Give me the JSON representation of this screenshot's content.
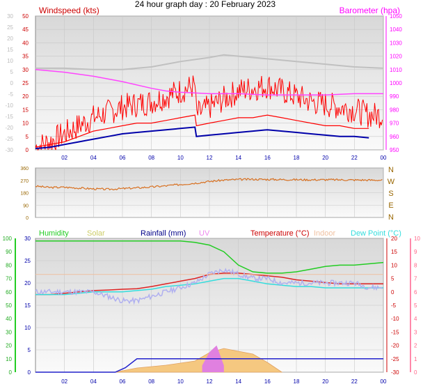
{
  "title": "24 hour graph day : 20 February 2023",
  "x_labels": [
    "02",
    "04",
    "06",
    "08",
    "10",
    "12",
    "14",
    "16",
    "18",
    "20",
    "22",
    "00"
  ],
  "colors": {
    "wind": "#ff0000",
    "gust": "#ff0000",
    "avgwind": "#0000aa",
    "baro": "#ff44ff",
    "grey_trace": "#c0c0c0",
    "dir": "#d87020",
    "dir_label": "#996600",
    "humidity": "#22cc22",
    "solar": "#cccc66",
    "rain": "#2222cc",
    "uv": "#ee88ee",
    "temperature": "#dd2222",
    "indoor": "#f0c0a0",
    "dewpoint": "#33dddd",
    "lavender": "#b0b0f0",
    "solar_fill": "#f5c880",
    "uv_fill": "#e080e0"
  },
  "chart_data": [
    {
      "type": "line",
      "panel": "wind",
      "title": "",
      "left_axis_label": "Windspeed (kts)",
      "right_axis_label": "Barometer (hpa)",
      "left_ticks": [
        "50",
        "45",
        "40",
        "35",
        "30",
        "25",
        "20",
        "15",
        "10",
        "5",
        "0"
      ],
      "left_ylim": [
        0,
        50
      ],
      "faint_ticks": [
        "30",
        "25",
        "20",
        "15",
        "10",
        "5",
        "0",
        "-5",
        "-10",
        "-15",
        "-20",
        "-25",
        "-30"
      ],
      "faint_ylim": [
        -30,
        30
      ],
      "right_ticks": [
        "1050",
        "1040",
        "1030",
        "1020",
        "1010",
        "1000",
        "990",
        "980",
        "970",
        "960",
        "950"
      ],
      "right_ylim": [
        950,
        1050
      ],
      "grid": true,
      "series": [
        {
          "key": "gust",
          "x": [
            0,
            1,
            2,
            3,
            4,
            5,
            6,
            7,
            8,
            9,
            10,
            11,
            11.1,
            12,
            13,
            14,
            15,
            16,
            17,
            18,
            19,
            20,
            21,
            22,
            23
          ],
          "y": [
            1,
            3,
            6,
            9,
            12,
            14,
            16,
            17,
            18,
            20,
            22,
            24,
            13,
            16,
            19,
            22,
            23,
            24,
            22,
            20,
            18,
            17,
            16,
            15,
            13
          ]
        },
        {
          "key": "wind",
          "x": [
            0,
            1,
            2,
            3,
            4,
            5,
            6,
            7,
            8,
            9,
            10,
            11,
            11.1,
            12,
            13,
            14,
            15,
            16,
            17,
            18,
            19,
            20,
            21,
            22,
            23
          ],
          "y": [
            1,
            2,
            3,
            5,
            7,
            8,
            9,
            10,
            10,
            11,
            12,
            13,
            9,
            10,
            11,
            12,
            12,
            13,
            12,
            11,
            10,
            9,
            9,
            8,
            8
          ]
        },
        {
          "key": "avgwind",
          "x": [
            0,
            1,
            2,
            3,
            4,
            5,
            6,
            7,
            8,
            9,
            10,
            11,
            11.1,
            12,
            13,
            14,
            15,
            16,
            17,
            18,
            19,
            20,
            21,
            22,
            23
          ],
          "y": [
            0.5,
            1,
            2,
            3,
            4,
            5,
            6,
            6.5,
            7,
            7.5,
            8,
            8.5,
            5,
            5.5,
            6,
            6.5,
            7,
            7.5,
            7,
            6.5,
            6,
            5.5,
            5,
            5,
            4.5
          ]
        },
        {
          "key": "grey_trace",
          "x": [
            0,
            2,
            4,
            6,
            8,
            10,
            12,
            13,
            14,
            16,
            18,
            20,
            22,
            24
          ],
          "y": [
            1011,
            1011,
            1010,
            1010,
            1012,
            1016,
            1019,
            1021,
            1020,
            1018,
            1016,
            1014,
            1012,
            1011
          ]
        },
        {
          "key": "baro",
          "x": [
            0,
            2,
            4,
            6,
            8,
            9,
            10,
            12,
            14,
            16,
            18,
            20,
            22,
            24
          ],
          "y": [
            1010,
            1008,
            1005,
            1001,
            996,
            994,
            993,
            992,
            992,
            991,
            991,
            991,
            992,
            992
          ]
        }
      ]
    },
    {
      "type": "line",
      "panel": "direction",
      "left_ticks": [
        "360",
        "270",
        "180",
        "90",
        "0"
      ],
      "ylim": [
        0,
        360
      ],
      "right_labels": [
        "N",
        "W",
        "S",
        "E",
        "N"
      ],
      "series": [
        {
          "key": "dir",
          "x": [
            0,
            1,
            2,
            3,
            4,
            5,
            6,
            7,
            8,
            9,
            10,
            11,
            12,
            13,
            14,
            15,
            16,
            17,
            18,
            19,
            20,
            21,
            22,
            23,
            24
          ],
          "y": [
            228,
            218,
            220,
            214,
            208,
            205,
            210,
            215,
            222,
            230,
            240,
            250,
            262,
            272,
            276,
            278,
            277,
            276,
            275,
            274,
            275,
            274,
            273,
            272,
            272
          ]
        }
      ]
    },
    {
      "type": "line",
      "panel": "climate",
      "legend": [
        "Humidity",
        "Solar",
        "Rainfall (mm)",
        "UV",
        "Temperature (°C)",
        "Indoor",
        "Dew Point (°C)"
      ],
      "humidity_ticks": [
        "100",
        "90",
        "80",
        "70",
        "60",
        "50",
        "40",
        "30",
        "20",
        "10",
        "0"
      ],
      "humidity_ylim": [
        0,
        100
      ],
      "rain_ticks": [
        "30",
        "25",
        "20",
        "15",
        "10",
        "5",
        "0"
      ],
      "rain_ylim": [
        0,
        30
      ],
      "temp_ticks": [
        "20",
        "15",
        "10",
        "5",
        "0",
        "-5",
        "-10",
        "-15",
        "-20",
        "-25",
        "-30"
      ],
      "temp_ylim": [
        -30,
        20
      ],
      "uv_ticks": [
        "10",
        "9",
        "8",
        "7",
        "6",
        "5",
        "4",
        "3",
        "2",
        "1",
        "0"
      ],
      "uv_ylim": [
        0,
        10
      ],
      "series": [
        {
          "key": "humidity",
          "x": [
            0,
            1,
            2,
            3,
            4,
            5,
            6,
            7,
            8,
            9,
            10,
            11,
            12,
            13,
            14,
            15,
            16,
            17,
            18,
            19,
            20,
            21,
            22,
            23,
            24
          ],
          "y": [
            98,
            98,
            98,
            98,
            98,
            98,
            98,
            98,
            98,
            98,
            98,
            97,
            95,
            90,
            80,
            75,
            74,
            74,
            75,
            77,
            79,
            80,
            80,
            81,
            82
          ]
        },
        {
          "key": "temperature",
          "x": [
            0,
            1,
            2,
            3,
            4,
            5,
            6,
            7,
            8,
            9,
            10,
            11,
            12,
            13,
            14,
            15,
            16,
            17,
            18,
            19,
            20,
            21,
            22,
            23,
            24
          ],
          "y": [
            -1,
            -1,
            -0.5,
            0,
            0.5,
            0.7,
            1,
            1.2,
            2,
            3,
            4,
            5,
            6.5,
            7,
            7,
            6.5,
            6,
            5.5,
            4.5,
            4,
            3.5,
            3,
            3,
            3,
            3
          ]
        },
        {
          "key": "dewpoint",
          "x": [
            0,
            1,
            2,
            3,
            4,
            5,
            6,
            7,
            8,
            9,
            10,
            11,
            12,
            13,
            14,
            15,
            16,
            17,
            18,
            19,
            20,
            21,
            22,
            23,
            24
          ],
          "y": [
            -1,
            -1,
            -1,
            -0.5,
            0,
            0,
            0,
            0.5,
            1,
            2,
            2.5,
            3,
            4,
            5,
            5,
            4,
            3,
            2.5,
            2,
            2,
            1.5,
            1.5,
            1.5,
            1.5,
            1.5
          ]
        },
        {
          "key": "lavender",
          "x": [
            0,
            1,
            2,
            3,
            4,
            5,
            6,
            7,
            8,
            9,
            10,
            11,
            12,
            13,
            14,
            15,
            16,
            17,
            18,
            19,
            20,
            21,
            22,
            23,
            24
          ],
          "y": [
            18,
            18,
            18,
            18,
            18,
            17,
            16,
            16,
            17,
            18,
            19,
            20,
            22,
            23,
            22,
            21,
            21,
            20,
            20,
            20,
            20,
            20,
            20,
            19,
            19
          ]
        },
        {
          "key": "indoor",
          "x": [
            0,
            24
          ],
          "y": [
            6.5,
            6.5
          ]
        },
        {
          "key": "rain",
          "x": [
            0,
            5.5,
            6.2,
            7,
            8,
            11,
            11.5,
            24
          ],
          "y": [
            0,
            0,
            1,
            3,
            3,
            3,
            3,
            3
          ]
        },
        {
          "key": "solar",
          "x": [
            5.5,
            7,
            9,
            11,
            12,
            13,
            14,
            15,
            16,
            17
          ],
          "y": [
            0,
            150,
            250,
            400,
            700,
            850,
            750,
            650,
            350,
            0
          ]
        },
        {
          "key": "uv",
          "x": [
            11.5,
            12,
            12.5,
            13
          ],
          "y": [
            0.5,
            1.5,
            2,
            0.5
          ]
        }
      ]
    }
  ]
}
